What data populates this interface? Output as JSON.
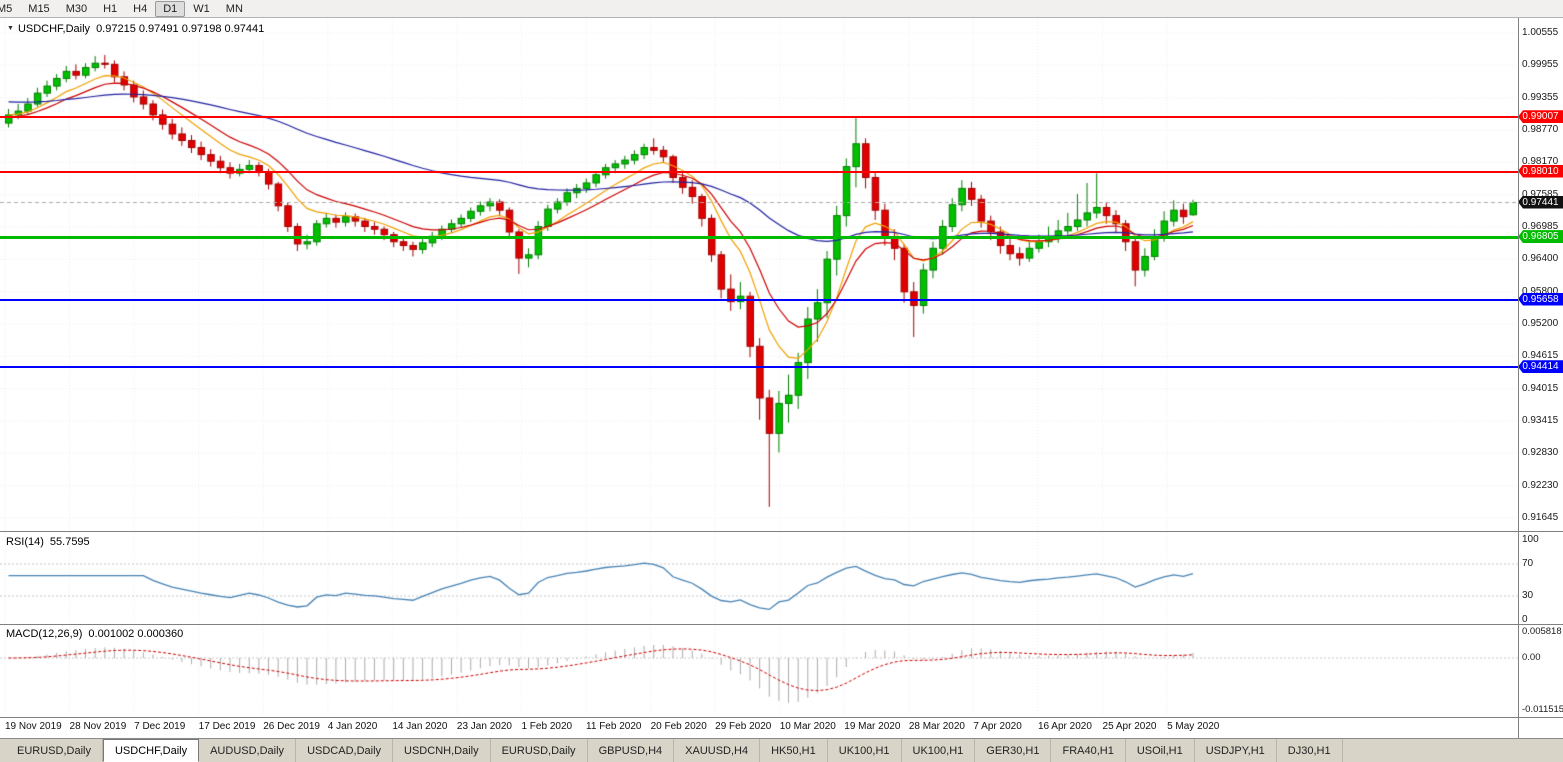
{
  "toolbar": {
    "timeframes": [
      "M5",
      "M15",
      "M30",
      "H1",
      "H4",
      "D1",
      "W1",
      "MN"
    ],
    "active_timeframe": "D1"
  },
  "chart": {
    "dropdown_icon": "▼",
    "symbol": "USDCHF,Daily",
    "ohlc": "0.97215 0.97491 0.97198 0.97441",
    "price_axis_labels": [
      "1.00555",
      "0.99955",
      "0.99355",
      "0.98770",
      "0.98170",
      "0.97585",
      "0.96985",
      "0.96400",
      "0.95800",
      "0.95200",
      "0.94615",
      "0.94015",
      "0.93415",
      "0.92830",
      "0.92230",
      "0.91645"
    ],
    "price_axis_range": {
      "top": 1.00555,
      "bottom": 0.91645
    },
    "hlines": [
      {
        "price": 0.99007,
        "label": "0.99007",
        "color": "#FF0000",
        "thickness": 2
      },
      {
        "price": 0.9801,
        "label": "0.98010",
        "color": "#FF0000",
        "thickness": 2
      },
      {
        "price": 0.96805,
        "label": "0.96805",
        "color": "#00BB00",
        "thickness": 3
      },
      {
        "price": 0.95658,
        "label": "0.95658",
        "color": "#0000FF",
        "thickness": 2
      },
      {
        "price": 0.94414,
        "label": "0.94414",
        "color": "#0000FF",
        "thickness": 2
      }
    ],
    "current_price": {
      "price": 0.97441,
      "label": "0.97441",
      "badge_color": "#111111"
    }
  },
  "chart_data": {
    "type": "candlestick",
    "title": "USDCHF,Daily",
    "up_color": "#00C000",
    "down_color": "#E00000",
    "x_axis_dates": [
      "19 Nov 2019",
      "28 Nov 2019",
      "7 Dec 2019",
      "17 Dec 2019",
      "26 Dec 2019",
      "4 Jan 2020",
      "14 Jan 2020",
      "23 Jan 2020",
      "1 Feb 2020",
      "11 Feb 2020",
      "20 Feb 2020",
      "29 Feb 2020",
      "10 Mar 2020",
      "19 Mar 2020",
      "28 Mar 2020",
      "7 Apr 2020",
      "16 Apr 2020",
      "25 Apr 2020",
      "5 May 2020"
    ],
    "moving_averages": [
      {
        "period": 8,
        "color": "#F0A000",
        "seed": 0.9905
      },
      {
        "period": 13,
        "color": "#CC0000",
        "seed": 0.99
      },
      {
        "period": 55,
        "color": "#2020A0",
        "seed": 0.993
      }
    ],
    "candles": [
      [
        0.989,
        0.9916,
        0.9882,
        0.9905
      ],
      [
        0.9905,
        0.9925,
        0.9897,
        0.9912
      ],
      [
        0.9912,
        0.9936,
        0.9905,
        0.9925
      ],
      [
        0.9925,
        0.9955,
        0.992,
        0.9945
      ],
      [
        0.9945,
        0.9968,
        0.9938,
        0.9958
      ],
      [
        0.9958,
        0.998,
        0.995,
        0.9972
      ],
      [
        0.9972,
        0.9995,
        0.9965,
        0.9985
      ],
      [
        0.9985,
        0.9998,
        0.997,
        0.9978
      ],
      [
        0.9978,
        1.0,
        0.9972,
        0.9992
      ],
      [
        0.9992,
        1.0013,
        0.9985,
        1.0
      ],
      [
        1.0,
        1.0015,
        0.999,
        0.9998
      ],
      [
        0.9998,
        1.0005,
        0.9965,
        0.9975
      ],
      [
        0.9975,
        0.9985,
        0.995,
        0.996
      ],
      [
        0.996,
        0.9968,
        0.9928,
        0.9938
      ],
      [
        0.9938,
        0.995,
        0.9915,
        0.9925
      ],
      [
        0.9925,
        0.9932,
        0.9895,
        0.9905
      ],
      [
        0.9905,
        0.9915,
        0.9878,
        0.9888
      ],
      [
        0.9888,
        0.9898,
        0.986,
        0.987
      ],
      [
        0.987,
        0.9882,
        0.9848,
        0.9858
      ],
      [
        0.9858,
        0.9868,
        0.9835,
        0.9845
      ],
      [
        0.9845,
        0.9856,
        0.9822,
        0.9832
      ],
      [
        0.9832,
        0.9842,
        0.981,
        0.982
      ],
      [
        0.982,
        0.983,
        0.9798,
        0.9808
      ],
      [
        0.9808,
        0.9818,
        0.9788,
        0.9798
      ],
      [
        0.9798,
        0.9815,
        0.9792,
        0.9805
      ],
      [
        0.9805,
        0.9822,
        0.9798,
        0.9812
      ],
      [
        0.9812,
        0.9818,
        0.9792,
        0.98
      ],
      [
        0.98,
        0.9806,
        0.9768,
        0.9778
      ],
      [
        0.9778,
        0.9782,
        0.9728,
        0.9738
      ],
      [
        0.9738,
        0.9745,
        0.969,
        0.97
      ],
      [
        0.97,
        0.9706,
        0.9655,
        0.9668
      ],
      [
        0.9668,
        0.9685,
        0.9658,
        0.9672
      ],
      [
        0.9672,
        0.9712,
        0.9665,
        0.9705
      ],
      [
        0.9705,
        0.9725,
        0.9698,
        0.9715
      ],
      [
        0.9715,
        0.9722,
        0.9698,
        0.9708
      ],
      [
        0.9708,
        0.9726,
        0.97,
        0.9718
      ],
      [
        0.9718,
        0.9724,
        0.97,
        0.971
      ],
      [
        0.971,
        0.9716,
        0.969,
        0.97
      ],
      [
        0.97,
        0.9708,
        0.9685,
        0.9695
      ],
      [
        0.9695,
        0.97,
        0.9675,
        0.9685
      ],
      [
        0.9685,
        0.969,
        0.9662,
        0.9672
      ],
      [
        0.9672,
        0.968,
        0.9655,
        0.9665
      ],
      [
        0.9665,
        0.9672,
        0.9645,
        0.9658
      ],
      [
        0.9658,
        0.9678,
        0.965,
        0.967
      ],
      [
        0.967,
        0.969,
        0.9662,
        0.9682
      ],
      [
        0.9682,
        0.9702,
        0.9675,
        0.9695
      ],
      [
        0.9695,
        0.9713,
        0.9688,
        0.9705
      ],
      [
        0.9705,
        0.9722,
        0.9698,
        0.9715
      ],
      [
        0.9715,
        0.9735,
        0.9708,
        0.9728
      ],
      [
        0.9728,
        0.9746,
        0.972,
        0.9738
      ],
      [
        0.9738,
        0.9752,
        0.9728,
        0.9745
      ],
      [
        0.9745,
        0.975,
        0.972,
        0.973
      ],
      [
        0.973,
        0.9735,
        0.9678,
        0.969
      ],
      [
        0.969,
        0.9695,
        0.9613,
        0.9642
      ],
      [
        0.9642,
        0.966,
        0.9625,
        0.9648
      ],
      [
        0.9648,
        0.971,
        0.964,
        0.97
      ],
      [
        0.97,
        0.974,
        0.9692,
        0.9732
      ],
      [
        0.9732,
        0.9752,
        0.9724,
        0.9745
      ],
      [
        0.9745,
        0.977,
        0.9738,
        0.9762
      ],
      [
        0.9762,
        0.9778,
        0.9752,
        0.977
      ],
      [
        0.977,
        0.9788,
        0.9762,
        0.978
      ],
      [
        0.978,
        0.9802,
        0.9772,
        0.9795
      ],
      [
        0.9795,
        0.9815,
        0.9788,
        0.9808
      ],
      [
        0.9808,
        0.9822,
        0.9798,
        0.9815
      ],
      [
        0.9815,
        0.983,
        0.9806,
        0.9822
      ],
      [
        0.9822,
        0.984,
        0.9814,
        0.9832
      ],
      [
        0.9832,
        0.9852,
        0.9824,
        0.9845
      ],
      [
        0.9845,
        0.9862,
        0.9832,
        0.984
      ],
      [
        0.984,
        0.9848,
        0.9818,
        0.9828
      ],
      [
        0.9828,
        0.9832,
        0.978,
        0.979
      ],
      [
        0.979,
        0.98,
        0.976,
        0.9772
      ],
      [
        0.9772,
        0.9785,
        0.9742,
        0.9755
      ],
      [
        0.9755,
        0.976,
        0.97,
        0.9715
      ],
      [
        0.9715,
        0.9722,
        0.9635,
        0.9648
      ],
      [
        0.9648,
        0.9655,
        0.9568,
        0.9585
      ],
      [
        0.9585,
        0.9612,
        0.9545,
        0.9562
      ],
      [
        0.9562,
        0.9598,
        0.9548,
        0.9572
      ],
      [
        0.9572,
        0.958,
        0.946,
        0.948
      ],
      [
        0.948,
        0.9495,
        0.9345,
        0.9385
      ],
      [
        0.9385,
        0.94,
        0.9185,
        0.932
      ],
      [
        0.932,
        0.9398,
        0.9285,
        0.9375
      ],
      [
        0.9375,
        0.9428,
        0.934,
        0.939
      ],
      [
        0.939,
        0.9468,
        0.9365,
        0.945
      ],
      [
        0.945,
        0.9552,
        0.942,
        0.953
      ],
      [
        0.953,
        0.9585,
        0.9488,
        0.956
      ],
      [
        0.956,
        0.9655,
        0.9532,
        0.964
      ],
      [
        0.964,
        0.9738,
        0.961,
        0.972
      ],
      [
        0.972,
        0.9825,
        0.97,
        0.981
      ],
      [
        0.981,
        0.99,
        0.9772,
        0.9852
      ],
      [
        0.9852,
        0.9862,
        0.977,
        0.979
      ],
      [
        0.979,
        0.98,
        0.9712,
        0.973
      ],
      [
        0.973,
        0.9742,
        0.9665,
        0.968
      ],
      [
        0.968,
        0.9695,
        0.9638,
        0.966
      ],
      [
        0.966,
        0.9668,
        0.956,
        0.958
      ],
      [
        0.958,
        0.9598,
        0.9497,
        0.9555
      ],
      [
        0.9555,
        0.9632,
        0.954,
        0.962
      ],
      [
        0.962,
        0.9672,
        0.9605,
        0.966
      ],
      [
        0.966,
        0.9712,
        0.9648,
        0.97
      ],
      [
        0.97,
        0.9752,
        0.969,
        0.974
      ],
      [
        0.974,
        0.9785,
        0.9728,
        0.977
      ],
      [
        0.977,
        0.9782,
        0.9738,
        0.975
      ],
      [
        0.975,
        0.9758,
        0.9698,
        0.971
      ],
      [
        0.971,
        0.972,
        0.9675,
        0.969
      ],
      [
        0.969,
        0.97,
        0.965,
        0.9665
      ],
      [
        0.9665,
        0.9678,
        0.9638,
        0.965
      ],
      [
        0.965,
        0.9662,
        0.9628,
        0.9642
      ],
      [
        0.9642,
        0.9672,
        0.9635,
        0.966
      ],
      [
        0.966,
        0.9685,
        0.9652,
        0.9672
      ],
      [
        0.9672,
        0.97,
        0.9662,
        0.968
      ],
      [
        0.968,
        0.9712,
        0.967,
        0.9692
      ],
      [
        0.9692,
        0.9725,
        0.9682,
        0.97
      ],
      [
        0.97,
        0.976,
        0.9692,
        0.9712
      ],
      [
        0.9712,
        0.978,
        0.97,
        0.9725
      ],
      [
        0.9725,
        0.9798,
        0.9715,
        0.9735
      ],
      [
        0.9735,
        0.9745,
        0.9705,
        0.972
      ],
      [
        0.972,
        0.973,
        0.969,
        0.9705
      ],
      [
        0.9705,
        0.9712,
        0.9655,
        0.9672
      ],
      [
        0.9672,
        0.968,
        0.959,
        0.962
      ],
      [
        0.962,
        0.966,
        0.9608,
        0.9645
      ],
      [
        0.9645,
        0.9695,
        0.9638,
        0.968
      ],
      [
        0.968,
        0.9728,
        0.9672,
        0.971
      ],
      [
        0.971,
        0.9748,
        0.97,
        0.973
      ],
      [
        0.973,
        0.9742,
        0.9705,
        0.9718
      ],
      [
        0.97215,
        0.97491,
        0.97198,
        0.97441
      ]
    ]
  },
  "rsi": {
    "title": "RSI(14)",
    "value": "55.7595",
    "period": 14,
    "line_color": "#4682B4",
    "axis_labels": [
      "100",
      "70",
      "30",
      "0"
    ],
    "axis_values": [
      100,
      70,
      30,
      0
    ],
    "levels": [
      70,
      30
    ]
  },
  "macd": {
    "title": "MACD(12,26,9)",
    "values": "0.001002 0.000360",
    "fast": 12,
    "slow": 26,
    "signal": 9,
    "histogram_color": "#ABABAB",
    "signal_color": "#CC0000",
    "axis_labels": [
      "0.005818",
      "0.00",
      "-0.011515"
    ],
    "axis_values": [
      0.005818,
      0,
      -0.011515
    ]
  },
  "tabs": [
    {
      "label": "EURUSD,Daily",
      "active": false
    },
    {
      "label": "USDCHF,Daily",
      "active": true
    },
    {
      "label": "AUDUSD,Daily",
      "active": false
    },
    {
      "label": "USDCAD,Daily",
      "active": false
    },
    {
      "label": "USDCNH,Daily",
      "active": false
    },
    {
      "label": "EURUSD,Daily",
      "active": false
    },
    {
      "label": "GBPUSD,H4",
      "active": false
    },
    {
      "label": "XAUUSD,H4",
      "active": false
    },
    {
      "label": "HK50,H1",
      "active": false
    },
    {
      "label": "UK100,H1",
      "active": false
    },
    {
      "label": "UK100,H1",
      "active": false
    },
    {
      "label": "GER30,H1",
      "active": false
    },
    {
      "label": "FRA40,H1",
      "active": false
    },
    {
      "label": "USOil,H1",
      "active": false
    },
    {
      "label": "USDJPY,H1",
      "active": false
    },
    {
      "label": "DJ30,H1",
      "active": false
    }
  ]
}
